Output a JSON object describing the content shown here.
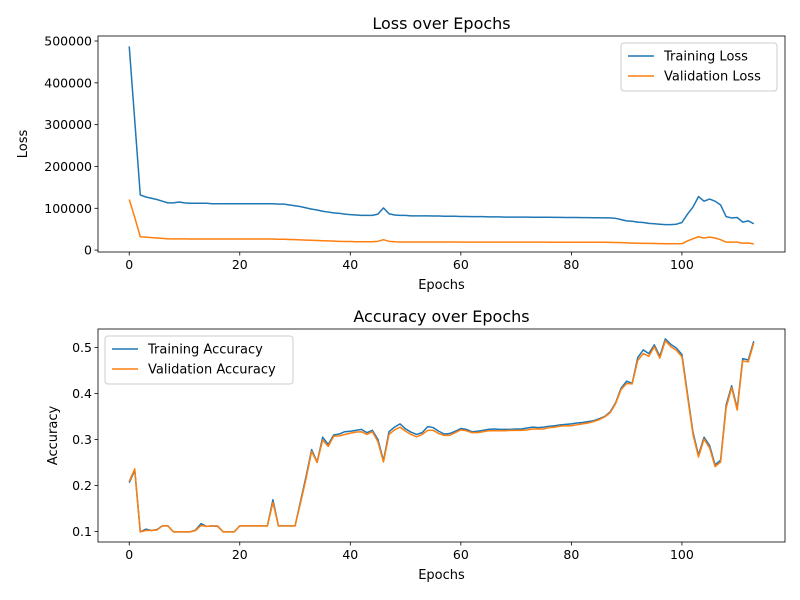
{
  "chart_data": [
    {
      "type": "line",
      "title": "Loss over Epochs",
      "xlabel": "Epochs",
      "ylabel": "Loss",
      "xlim": [
        -5.65,
        118.65
      ],
      "ylim": [
        -4500,
        512000
      ],
      "xticks": [
        0,
        20,
        40,
        60,
        80,
        100
      ],
      "yticks": [
        0,
        100000,
        200000,
        300000,
        400000,
        500000
      ],
      "grid": false,
      "legend_position": "top-right",
      "series": [
        {
          "name": "Training Loss",
          "color": "#1f77b4",
          "x": [
            0,
            1,
            2,
            3,
            4,
            5,
            6,
            7,
            8,
            9,
            10,
            11,
            12,
            13,
            14,
            15,
            16,
            17,
            18,
            19,
            20,
            21,
            22,
            23,
            24,
            25,
            26,
            27,
            28,
            29,
            30,
            31,
            32,
            33,
            34,
            35,
            36,
            37,
            38,
            39,
            40,
            41,
            42,
            43,
            44,
            45,
            46,
            47,
            48,
            49,
            50,
            51,
            52,
            53,
            54,
            55,
            56,
            57,
            58,
            59,
            60,
            61,
            62,
            63,
            64,
            65,
            66,
            67,
            68,
            69,
            70,
            71,
            72,
            73,
            74,
            75,
            76,
            77,
            78,
            79,
            80,
            81,
            82,
            83,
            84,
            85,
            86,
            87,
            88,
            89,
            90,
            91,
            92,
            93,
            94,
            95,
            96,
            97,
            98,
            99,
            100,
            101,
            102,
            103,
            104,
            105,
            106,
            107,
            108,
            109,
            110,
            111,
            112,
            113
          ],
          "y": [
            487000,
            310000,
            132000,
            127000,
            124000,
            121000,
            117000,
            113000,
            113000,
            115000,
            113000,
            112000,
            112000,
            112000,
            112000,
            111000,
            111000,
            111000,
            111000,
            111000,
            111000,
            111000,
            111000,
            111000,
            111000,
            111000,
            111000,
            110000,
            110000,
            108000,
            106000,
            104000,
            101000,
            98000,
            96000,
            93000,
            91000,
            89000,
            88000,
            86000,
            85000,
            84000,
            83000,
            83000,
            83000,
            86000,
            101000,
            87000,
            84000,
            83000,
            83000,
            82000,
            82000,
            82000,
            82000,
            81500,
            81500,
            81000,
            81000,
            81000,
            80500,
            80500,
            80000,
            80000,
            80000,
            79500,
            79500,
            79500,
            79000,
            79000,
            79000,
            78800,
            78800,
            78500,
            78500,
            78500,
            78500,
            78200,
            78200,
            78000,
            78000,
            78000,
            77800,
            77800,
            77500,
            77500,
            77200,
            77000,
            76000,
            73000,
            70000,
            69000,
            67000,
            66000,
            64000,
            63000,
            62000,
            61000,
            61000,
            62000,
            66000,
            86000,
            103000,
            128000,
            117000,
            122000,
            117000,
            108000,
            80000,
            77000,
            78000,
            67000,
            70000,
            63000
          ]
        },
        {
          "name": "Validation Loss",
          "color": "#ff7f0e",
          "x": [
            0,
            1,
            2,
            3,
            4,
            5,
            6,
            7,
            8,
            9,
            10,
            11,
            12,
            13,
            14,
            15,
            16,
            17,
            18,
            19,
            20,
            21,
            22,
            23,
            24,
            25,
            26,
            27,
            28,
            29,
            30,
            31,
            32,
            33,
            34,
            35,
            36,
            37,
            38,
            39,
            40,
            41,
            42,
            43,
            44,
            45,
            46,
            47,
            48,
            49,
            50,
            51,
            52,
            53,
            54,
            55,
            56,
            57,
            58,
            59,
            60,
            61,
            62,
            63,
            64,
            65,
            66,
            67,
            68,
            69,
            70,
            71,
            72,
            73,
            74,
            75,
            76,
            77,
            78,
            79,
            80,
            81,
            82,
            83,
            84,
            85,
            86,
            87,
            88,
            89,
            90,
            91,
            92,
            93,
            94,
            95,
            96,
            97,
            98,
            99,
            100,
            101,
            102,
            103,
            104,
            105,
            106,
            107,
            108,
            109,
            110,
            111,
            112,
            113
          ],
          "y": [
            121000,
            78000,
            32000,
            31000,
            30000,
            29000,
            28000,
            27000,
            27000,
            27000,
            27000,
            26500,
            26500,
            26500,
            26500,
            26500,
            26500,
            26500,
            26500,
            26500,
            26500,
            26500,
            26500,
            26500,
            26500,
            26500,
            26500,
            26000,
            26000,
            25500,
            25000,
            24500,
            24000,
            23500,
            23000,
            22500,
            22000,
            21500,
            21000,
            20500,
            20500,
            20000,
            20000,
            20000,
            20000,
            21000,
            25000,
            21000,
            20000,
            19500,
            19500,
            19500,
            19500,
            19500,
            19500,
            19400,
            19400,
            19300,
            19300,
            19300,
            19200,
            19200,
            19200,
            19100,
            19100,
            19100,
            19000,
            19000,
            19000,
            19000,
            19000,
            19000,
            19000,
            19000,
            19000,
            19000,
            18900,
            18900,
            18900,
            18900,
            18900,
            18900,
            18900,
            18800,
            18800,
            18800,
            18700,
            18600,
            18300,
            17800,
            17300,
            16800,
            16500,
            16200,
            16000,
            15700,
            15500,
            15300,
            15200,
            15200,
            15500,
            22000,
            27000,
            32000,
            29000,
            31000,
            29000,
            25000,
            19000,
            19000,
            19000,
            16500,
            17000,
            15000
          ]
        }
      ]
    },
    {
      "type": "line",
      "title": "Accuracy over Epochs",
      "xlabel": "Epochs",
      "ylabel": "Accuracy",
      "xlim": [
        -5.65,
        118.65
      ],
      "ylim": [
        0.077,
        0.5405
      ],
      "xticks": [
        0,
        20,
        40,
        60,
        80,
        100
      ],
      "yticks": [
        0.1,
        0.2,
        0.3,
        0.4,
        0.5
      ],
      "grid": false,
      "legend_position": "top-left",
      "series": [
        {
          "name": "Training Accuracy",
          "color": "#1f77b4",
          "x": [
            0,
            1,
            2,
            3,
            4,
            5,
            6,
            7,
            8,
            9,
            10,
            11,
            12,
            13,
            14,
            15,
            16,
            17,
            18,
            19,
            20,
            21,
            22,
            23,
            24,
            25,
            26,
            27,
            28,
            29,
            30,
            31,
            32,
            33,
            34,
            35,
            36,
            37,
            38,
            39,
            40,
            41,
            42,
            43,
            44,
            45,
            46,
            47,
            48,
            49,
            50,
            51,
            52,
            53,
            54,
            55,
            56,
            57,
            58,
            59,
            60,
            61,
            62,
            63,
            64,
            65,
            66,
            67,
            68,
            69,
            70,
            71,
            72,
            73,
            74,
            75,
            76,
            77,
            78,
            79,
            80,
            81,
            82,
            83,
            84,
            85,
            86,
            87,
            88,
            89,
            90,
            91,
            92,
            93,
            94,
            95,
            96,
            97,
            98,
            99,
            100,
            101,
            102,
            103,
            104,
            105,
            106,
            107,
            108,
            109,
            110,
            111,
            112,
            113
          ],
          "y": [
            0.206,
            0.233,
            0.099,
            0.105,
            0.102,
            0.104,
            0.112,
            0.112,
            0.099,
            0.099,
            0.099,
            0.099,
            0.103,
            0.117,
            0.111,
            0.112,
            0.111,
            0.099,
            0.099,
            0.099,
            0.112,
            0.112,
            0.112,
            0.112,
            0.112,
            0.112,
            0.169,
            0.112,
            0.112,
            0.112,
            0.112,
            0.166,
            0.22,
            0.278,
            0.251,
            0.305,
            0.289,
            0.31,
            0.312,
            0.317,
            0.318,
            0.32,
            0.322,
            0.315,
            0.32,
            0.3,
            0.254,
            0.317,
            0.327,
            0.334,
            0.323,
            0.316,
            0.311,
            0.315,
            0.328,
            0.326,
            0.318,
            0.312,
            0.313,
            0.318,
            0.324,
            0.322,
            0.317,
            0.318,
            0.32,
            0.322,
            0.323,
            0.322,
            0.322,
            0.322,
            0.323,
            0.323,
            0.325,
            0.327,
            0.326,
            0.327,
            0.329,
            0.33,
            0.332,
            0.333,
            0.334,
            0.336,
            0.337,
            0.339,
            0.341,
            0.345,
            0.35,
            0.36,
            0.38,
            0.412,
            0.427,
            0.422,
            0.478,
            0.495,
            0.487,
            0.506,
            0.481,
            0.519,
            0.507,
            0.499,
            0.485,
            0.4,
            0.316,
            0.266,
            0.305,
            0.287,
            0.245,
            0.255,
            0.375,
            0.417,
            0.368,
            0.476,
            0.473,
            0.514
          ]
        },
        {
          "name": "Validation Accuracy",
          "color": "#ff7f0e",
          "x": [
            0,
            1,
            2,
            3,
            4,
            5,
            6,
            7,
            8,
            9,
            10,
            11,
            12,
            13,
            14,
            15,
            16,
            17,
            18,
            19,
            20,
            21,
            22,
            23,
            24,
            25,
            26,
            27,
            28,
            29,
            30,
            31,
            32,
            33,
            34,
            35,
            36,
            37,
            38,
            39,
            40,
            41,
            42,
            43,
            44,
            45,
            46,
            47,
            48,
            49,
            50,
            51,
            52,
            53,
            54,
            55,
            56,
            57,
            58,
            59,
            60,
            61,
            62,
            63,
            64,
            65,
            66,
            67,
            68,
            69,
            70,
            71,
            72,
            73,
            74,
            75,
            76,
            77,
            78,
            79,
            80,
            81,
            82,
            83,
            84,
            85,
            86,
            87,
            88,
            89,
            90,
            91,
            92,
            93,
            94,
            95,
            96,
            97,
            98,
            99,
            100,
            101,
            102,
            103,
            104,
            105,
            106,
            107,
            108,
            109,
            110,
            111,
            112,
            113
          ],
          "y": [
            0.209,
            0.236,
            0.099,
            0.102,
            0.102,
            0.103,
            0.112,
            0.112,
            0.099,
            0.099,
            0.099,
            0.099,
            0.102,
            0.113,
            0.111,
            0.112,
            0.112,
            0.099,
            0.099,
            0.099,
            0.112,
            0.112,
            0.112,
            0.112,
            0.112,
            0.112,
            0.163,
            0.112,
            0.112,
            0.112,
            0.112,
            0.162,
            0.215,
            0.274,
            0.25,
            0.299,
            0.285,
            0.307,
            0.308,
            0.311,
            0.314,
            0.316,
            0.317,
            0.311,
            0.317,
            0.295,
            0.251,
            0.311,
            0.321,
            0.327,
            0.318,
            0.311,
            0.306,
            0.311,
            0.32,
            0.32,
            0.313,
            0.309,
            0.309,
            0.315,
            0.321,
            0.319,
            0.315,
            0.315,
            0.317,
            0.319,
            0.319,
            0.319,
            0.319,
            0.32,
            0.32,
            0.32,
            0.321,
            0.323,
            0.323,
            0.323,
            0.326,
            0.327,
            0.329,
            0.33,
            0.33,
            0.332,
            0.334,
            0.336,
            0.339,
            0.343,
            0.349,
            0.358,
            0.378,
            0.409,
            0.422,
            0.421,
            0.472,
            0.487,
            0.481,
            0.502,
            0.477,
            0.515,
            0.502,
            0.494,
            0.48,
            0.395,
            0.311,
            0.262,
            0.301,
            0.282,
            0.241,
            0.251,
            0.369,
            0.413,
            0.364,
            0.471,
            0.469,
            0.51
          ]
        }
      ]
    }
  ]
}
